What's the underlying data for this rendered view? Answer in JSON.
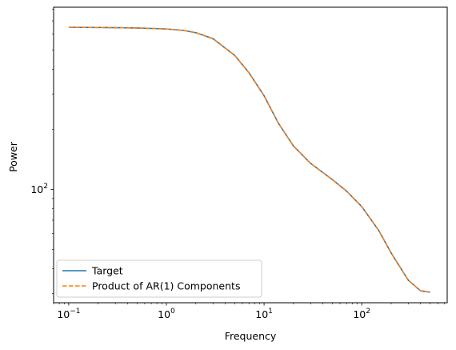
{
  "chart_data": {
    "type": "line",
    "xlabel": "Frequency",
    "ylabel": "Power",
    "xscale": "log",
    "yscale": "log",
    "xlim": [
      0.07,
      750
    ],
    "ylim": [
      27,
      820
    ],
    "x_tick_labels": [
      {
        "value": 0.1,
        "base": "10",
        "exp": "−1"
      },
      {
        "value": 1,
        "base": "10",
        "exp": "0"
      },
      {
        "value": 10,
        "base": "10",
        "exp": "1"
      },
      {
        "value": 100,
        "base": "10",
        "exp": "2"
      }
    ],
    "y_tick_labels": [
      {
        "value": 100,
        "base": "10",
        "exp": "2"
      }
    ],
    "grid": false,
    "legend_position": "lower-left",
    "colors": {
      "target": "#1f77b4",
      "product": "#ff7f0e"
    },
    "series": [
      {
        "name": "Target",
        "style": "solid",
        "x": [
          0.1,
          0.2,
          0.5,
          1,
          1.5,
          2,
          3,
          5,
          7,
          10,
          14,
          20,
          30,
          50,
          70,
          100,
          150,
          200,
          300,
          400,
          500
        ],
        "y": [
          650,
          649,
          645,
          638,
          627,
          611,
          570,
          470,
          385,
          295,
          215,
          165,
          135,
          112,
          98,
          82,
          62,
          48,
          35,
          31,
          30.5
        ]
      },
      {
        "name": "Product of AR(1) Components",
        "style": "dashed",
        "x": [
          0.1,
          0.2,
          0.5,
          1,
          1.5,
          2,
          3,
          5,
          7,
          10,
          14,
          20,
          30,
          50,
          70,
          100,
          150,
          200,
          300,
          400,
          500
        ],
        "y": [
          650,
          649,
          645,
          638,
          627,
          611,
          570,
          470,
          385,
          295,
          215,
          165,
          135,
          112,
          98,
          82,
          62,
          48,
          35,
          31,
          30.5
        ]
      }
    ]
  }
}
